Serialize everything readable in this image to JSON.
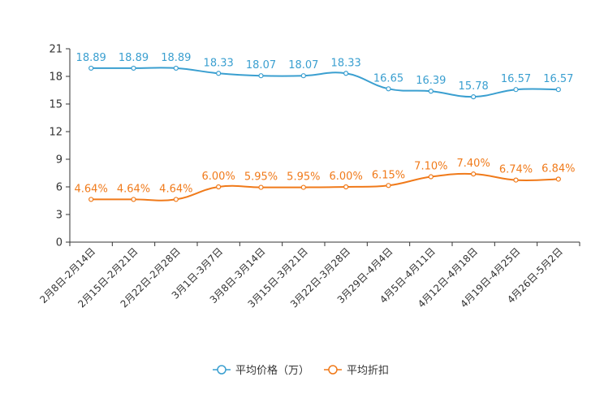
{
  "chart_data": {
    "type": "line",
    "title": "",
    "xlabel": "",
    "ylabel": "",
    "ylim": [
      0,
      21
    ],
    "yticks": [
      0,
      3,
      6,
      9,
      12,
      15,
      18,
      21
    ],
    "categories": [
      "2月8日-2月14日",
      "2月15日-2月21日",
      "2月22日-2月28日",
      "3月1日-3月7日",
      "3月8日-3月14日",
      "3月15日-3月21日",
      "3月22日-3月28日",
      "3月29日-4月4日",
      "4月5日-4月11日",
      "4月12日-4月18日",
      "4月19日-4月25日",
      "4月26日-5月2日"
    ],
    "series": [
      {
        "name": "平均价格（万）",
        "color": "#3a9fd0",
        "values": [
          18.89,
          18.89,
          18.89,
          18.33,
          18.07,
          18.07,
          18.33,
          16.65,
          16.39,
          15.78,
          16.57,
          16.57
        ],
        "labels": [
          "18.89",
          "18.89",
          "18.89",
          "18.33",
          "18.07",
          "18.07",
          "18.33",
          "16.65",
          "16.39",
          "15.78",
          "16.57",
          "16.57"
        ]
      },
      {
        "name": "平均折扣",
        "color": "#f07a1a",
        "values": [
          4.64,
          4.64,
          4.64,
          6.0,
          5.95,
          5.95,
          6.0,
          6.15,
          7.1,
          7.4,
          6.74,
          6.84
        ],
        "labels": [
          "4.64%",
          "4.64%",
          "4.64%",
          "6.00%",
          "5.95%",
          "5.95%",
          "6.00%",
          "6.15%",
          "7.10%",
          "7.40%",
          "6.74%",
          "6.84%"
        ]
      }
    ],
    "legend_position": "bottom-center",
    "grid": false
  }
}
